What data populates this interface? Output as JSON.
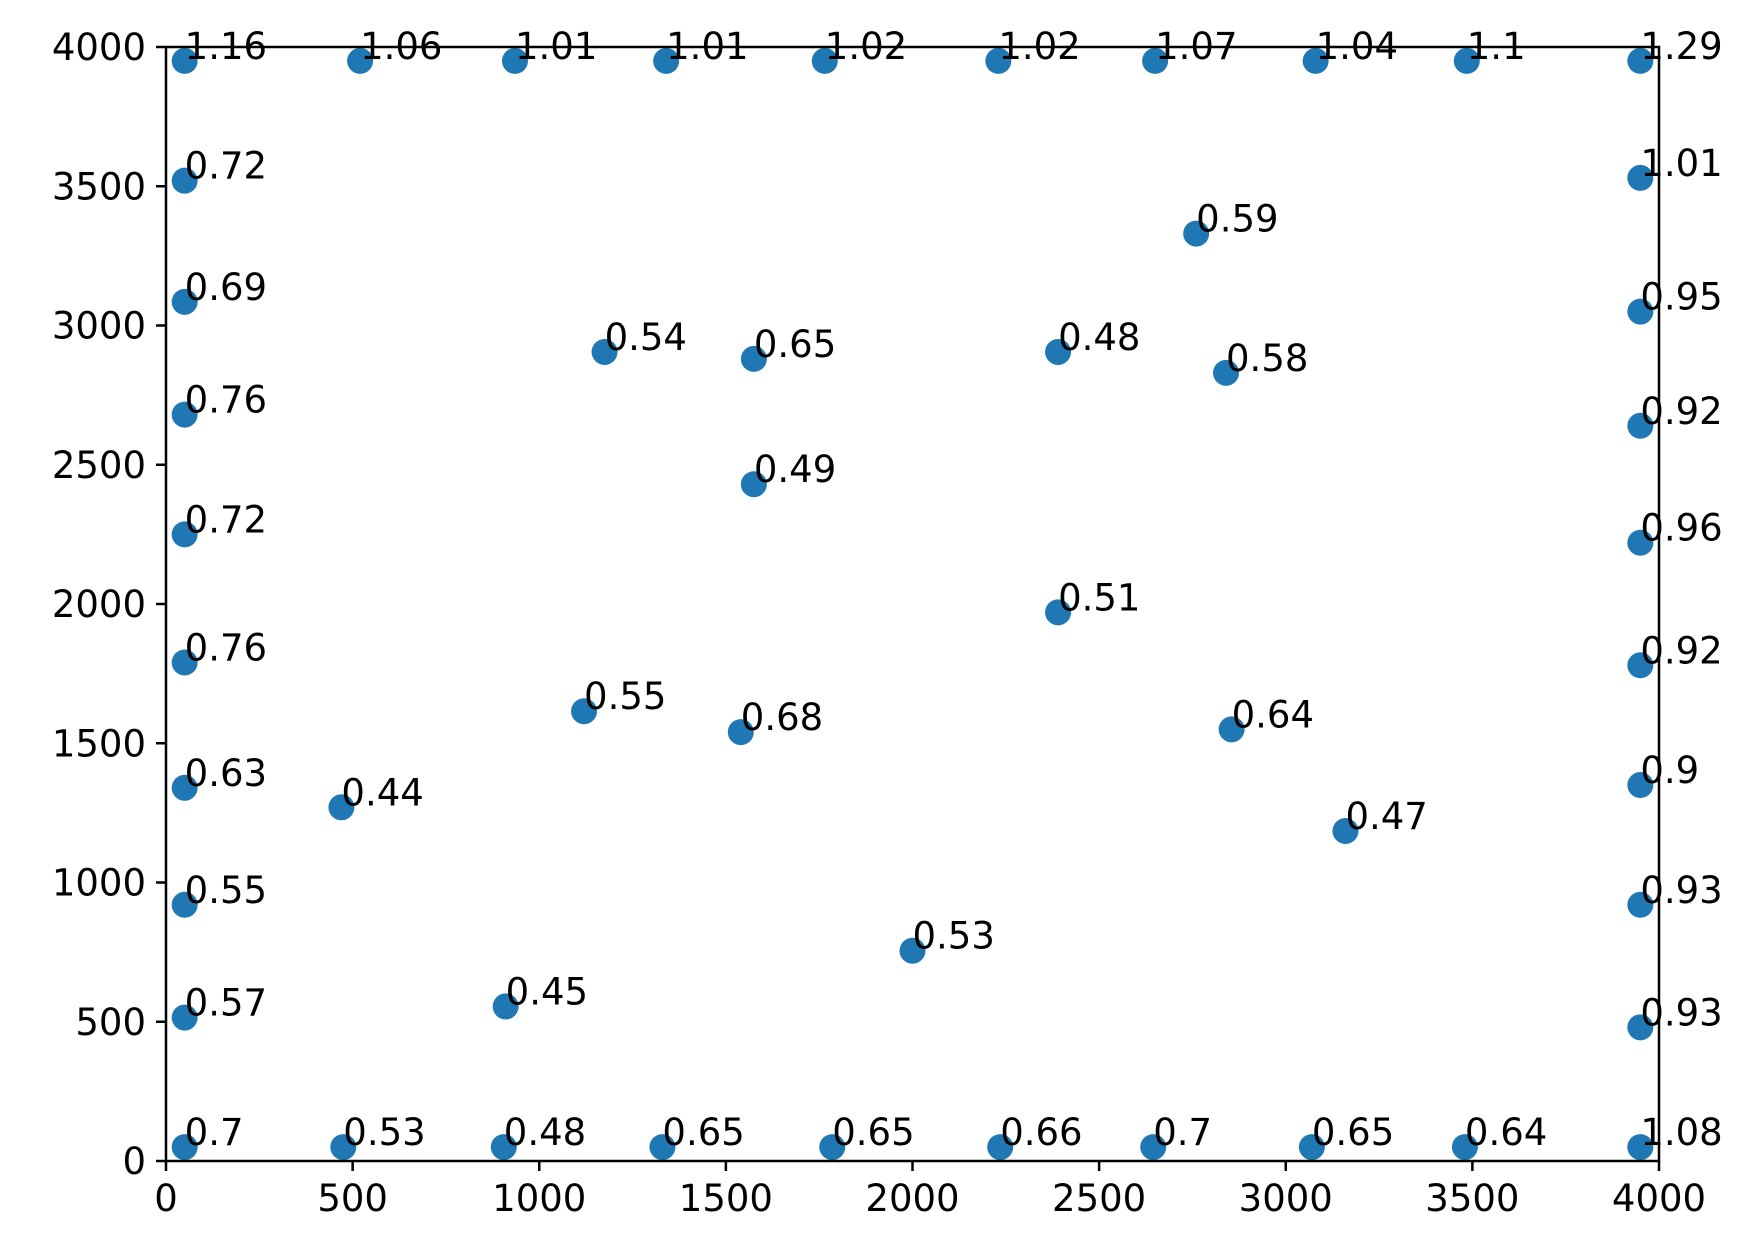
{
  "chart_data": {
    "type": "scatter",
    "title": "",
    "xlabel": "",
    "ylabel": "",
    "xlim": [
      0,
      4000
    ],
    "ylim": [
      0,
      4000
    ],
    "xticks": [
      0,
      500,
      1000,
      1500,
      2000,
      2500,
      3000,
      3500,
      4000
    ],
    "yticks": [
      0,
      500,
      1000,
      1500,
      2000,
      2500,
      3000,
      3500,
      4000
    ],
    "grid": false,
    "legend": "none",
    "color": "#1f77b4",
    "points": [
      {
        "x": 50,
        "y": 3950,
        "label": "1.16"
      },
      {
        "x": 520,
        "y": 3950,
        "label": "1.06"
      },
      {
        "x": 935,
        "y": 3950,
        "label": "1.01"
      },
      {
        "x": 1340,
        "y": 3950,
        "label": "1.01"
      },
      {
        "x": 1765,
        "y": 3950,
        "label": "1.02"
      },
      {
        "x": 2230,
        "y": 3950,
        "label": "1.02"
      },
      {
        "x": 2650,
        "y": 3950,
        "label": "1.07"
      },
      {
        "x": 3080,
        "y": 3950,
        "label": "1.04"
      },
      {
        "x": 3485,
        "y": 3950,
        "label": "1.1"
      },
      {
        "x": 3950,
        "y": 3950,
        "label": "1.29"
      },
      {
        "x": 50,
        "y": 3520,
        "label": "0.72"
      },
      {
        "x": 50,
        "y": 3085,
        "label": "0.69"
      },
      {
        "x": 50,
        "y": 2680,
        "label": "0.76"
      },
      {
        "x": 50,
        "y": 2250,
        "label": "0.72"
      },
      {
        "x": 50,
        "y": 1790,
        "label": "0.76"
      },
      {
        "x": 50,
        "y": 1340,
        "label": "0.63"
      },
      {
        "x": 50,
        "y": 920,
        "label": "0.55"
      },
      {
        "x": 50,
        "y": 515,
        "label": "0.57"
      },
      {
        "x": 3950,
        "y": 3530,
        "label": "1.01"
      },
      {
        "x": 3950,
        "y": 3050,
        "label": "0.95"
      },
      {
        "x": 3950,
        "y": 2640,
        "label": "0.92"
      },
      {
        "x": 3950,
        "y": 2220,
        "label": "0.96"
      },
      {
        "x": 3950,
        "y": 1780,
        "label": "0.92"
      },
      {
        "x": 3950,
        "y": 1350,
        "label": "0.9"
      },
      {
        "x": 3950,
        "y": 920,
        "label": "0.93"
      },
      {
        "x": 3950,
        "y": 480,
        "label": "0.93"
      },
      {
        "x": 50,
        "y": 50,
        "label": "0.7"
      },
      {
        "x": 475,
        "y": 50,
        "label": "0.53"
      },
      {
        "x": 905,
        "y": 50,
        "label": "0.48"
      },
      {
        "x": 1330,
        "y": 50,
        "label": "0.65"
      },
      {
        "x": 1785,
        "y": 50,
        "label": "0.65"
      },
      {
        "x": 2235,
        "y": 50,
        "label": "0.66"
      },
      {
        "x": 2645,
        "y": 50,
        "label": "0.7"
      },
      {
        "x": 3070,
        "y": 50,
        "label": "0.65"
      },
      {
        "x": 3480,
        "y": 50,
        "label": "0.64"
      },
      {
        "x": 3950,
        "y": 50,
        "label": "1.08"
      },
      {
        "x": 2760,
        "y": 3330,
        "label": "0.59"
      },
      {
        "x": 1175,
        "y": 2905,
        "label": "0.54"
      },
      {
        "x": 1575,
        "y": 2880,
        "label": "0.65"
      },
      {
        "x": 2390,
        "y": 2905,
        "label": "0.48"
      },
      {
        "x": 2840,
        "y": 2830,
        "label": "0.58"
      },
      {
        "x": 1575,
        "y": 2430,
        "label": "0.49"
      },
      {
        "x": 2390,
        "y": 1970,
        "label": "0.51"
      },
      {
        "x": 1120,
        "y": 1615,
        "label": "0.55"
      },
      {
        "x": 1540,
        "y": 1540,
        "label": "0.68"
      },
      {
        "x": 2855,
        "y": 1550,
        "label": "0.64"
      },
      {
        "x": 470,
        "y": 1270,
        "label": "0.44"
      },
      {
        "x": 3160,
        "y": 1185,
        "label": "0.47"
      },
      {
        "x": 2000,
        "y": 755,
        "label": "0.53"
      },
      {
        "x": 910,
        "y": 555,
        "label": "0.45"
      }
    ]
  }
}
